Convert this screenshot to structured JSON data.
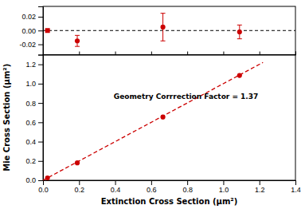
{
  "chart_data": [
    {
      "type": "scatter",
      "xlim": [
        0.0,
        1.4
      ],
      "ylim": [
        -0.035,
        0.035
      ],
      "xticks": [
        0,
        0.2,
        0.4,
        0.6,
        0.8,
        1.0,
        1.2,
        1.4
      ],
      "yticks": [
        -0.02,
        {
          "value": 0.0,
          "label": "0.00"
        },
        0.02
      ],
      "tick_labels": "y",
      "hline": 0.0,
      "series": [
        {
          "marker": "square",
          "color": "#cc0000",
          "x": [
            0.025
          ],
          "values": [
            0.0
          ],
          "error_lo": [
            0.0
          ],
          "error_hi": [
            0.0
          ]
        },
        {
          "marker": "circle",
          "color": "#cc0000",
          "x": [
            0.19,
            0.665,
            1.09
          ],
          "values": [
            -0.015,
            0.005,
            -0.002
          ],
          "error_lo": [
            0.008,
            0.02,
            0.01
          ],
          "error_hi": [
            0.008,
            0.02,
            0.01
          ]
        }
      ]
    },
    {
      "type": "scatter",
      "xlabel": "Extinction Cross Section (μm²)",
      "ylabel": "Mie Cross Section (μm²)",
      "annotation": "Geometry Corrrection Factor = 1.37",
      "xlim": [
        0.0,
        1.4
      ],
      "ylim": [
        0.0,
        1.3
      ],
      "xticks": [
        {
          "value": 0.0,
          "label": "0.0"
        },
        0.2,
        0.4,
        0.6,
        0.8,
        {
          "value": 1.0,
          "label": "1.0"
        },
        1.2,
        1.4
      ],
      "yticks": [
        {
          "value": 0.0,
          "label": "0.0"
        },
        0.2,
        0.4,
        0.6,
        0.8,
        {
          "value": 1.0,
          "label": "1.0"
        },
        1.2
      ],
      "series": [
        {
          "type": "line",
          "line_style": "dashed",
          "color": "#cc0000",
          "x": [
            0.0,
            1.22
          ],
          "values": [
            0.0,
            1.22
          ]
        },
        {
          "type": "scatter",
          "marker": "circle",
          "color": "#cc0000",
          "x": [
            0.025,
            0.19,
            0.665,
            1.09
          ],
          "values": [
            0.025,
            0.18,
            0.655,
            1.085
          ]
        }
      ]
    }
  ]
}
